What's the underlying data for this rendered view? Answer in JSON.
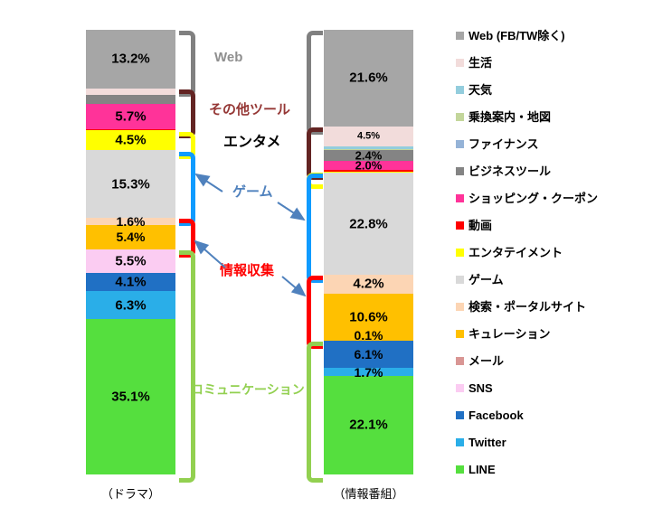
{
  "chart_data": {
    "type": "bar",
    "subtype": "stacked-percentage-columns",
    "title": "",
    "unit": "%",
    "legend_position": "right",
    "legend": [
      {
        "label": "Web (FB/TW除く)",
        "color": "#a6a6a6"
      },
      {
        "label": "生活",
        "color": "#f2dcdb"
      },
      {
        "label": "天気",
        "color": "#93cddd"
      },
      {
        "label": "乗換案内・地図",
        "color": "#c3d69b"
      },
      {
        "label": "ファイナンス",
        "color": "#95b3d7"
      },
      {
        "label": "ビジネスツール",
        "color": "#848484"
      },
      {
        "label": "ショッピング・クーポン",
        "color": "#ff3399"
      },
      {
        "label": "動画",
        "color": "#fe0000"
      },
      {
        "label": "エンタテイメント",
        "color": "#ffff00"
      },
      {
        "label": "ゲーム",
        "color": "#d9d9d9"
      },
      {
        "label": "検索・ポータルサイト",
        "color": "#fcd5b4"
      },
      {
        "label": "キュレーション",
        "color": "#ffc000"
      },
      {
        "label": "メール",
        "color": "#d99694"
      },
      {
        "label": "SNS",
        "color": "#fbccf2"
      },
      {
        "label": "Facebook",
        "color": "#2070c4"
      },
      {
        "label": "Twitter",
        "color": "#2aaee8"
      },
      {
        "label": "LINE",
        "color": "#55df3e"
      }
    ],
    "bars": [
      {
        "label": "（ドラマ）",
        "segments": [
          {
            "name": "Web (FB/TW除く)",
            "value": 13.2,
            "label": "13.2%",
            "label_size": 15
          },
          {
            "name": "生活",
            "value": 1.5
          },
          {
            "name": "ビジネスツール",
            "value": 2.1
          },
          {
            "name": "ショッピング・クーポン",
            "value": 5.7,
            "label": "5.7%",
            "label_size": 15
          },
          {
            "name": "動画",
            "value": 0.3
          },
          {
            "name": "エンタテイメント",
            "value": 4.5,
            "label": "4.5%",
            "label_size": 15
          },
          {
            "name": "ゲーム",
            "value": 15.3,
            "label": "15.3%",
            "label_size": 15
          },
          {
            "name": "検索・ポータルサイト",
            "value": 1.6,
            "label": "1.6%",
            "label_size": 14
          },
          {
            "name": "キュレーション",
            "value": 5.4,
            "label": "5.4%",
            "label_size": 14
          },
          {
            "name": "SNS",
            "value": 5.5,
            "label": "5.5%",
            "label_size": 15
          },
          {
            "name": "Facebook",
            "value": 4.1,
            "label": "4.1%",
            "label_size": 15
          },
          {
            "name": "Twitter",
            "value": 6.3,
            "label": "6.3%",
            "label_size": 15
          },
          {
            "name": "LINE",
            "value": 35.1,
            "label": "35.1%",
            "label_size": 15
          }
        ]
      },
      {
        "label": "（情報番組）",
        "segments": [
          {
            "name": "Web (FB/TW除く)",
            "value": 21.6,
            "label": "21.6%",
            "label_size": 15
          },
          {
            "name": "生活",
            "value": 4.5,
            "label": "4.5%",
            "label_size": 11
          },
          {
            "name": "天気",
            "value": 0.6
          },
          {
            "name": "乗換案内・地図",
            "value": 0.3
          },
          {
            "name": "ビジネスツール",
            "value": 2.4,
            "label": "2.4%",
            "label_size": 13
          },
          {
            "name": "ショッピング・クーポン",
            "value": 2.0,
            "label": "2.0%",
            "label_size": 13
          },
          {
            "name": "動画",
            "value": 0.4
          },
          {
            "name": "エンタテイメント",
            "value": 0.3
          },
          {
            "name": "ゲーム",
            "value": 22.8,
            "label": "22.8%",
            "label_size": 15
          },
          {
            "name": "検索・ポータルサイト",
            "value": 4.2,
            "label": "4.2%",
            "label_size": 15
          },
          {
            "name": "キュレーション",
            "value": 10.6,
            "label": "10.6%",
            "label_size": 15
          },
          {
            "name": "メール",
            "value": 0.1,
            "label": "0.1%",
            "label_size": 14,
            "label_dy": -6
          },
          {
            "name": "Facebook",
            "value": 6.1,
            "label": "6.1%",
            "label_size": 14
          },
          {
            "name": "Twitter",
            "value": 1.7,
            "label": "1.7%",
            "label_size": 14
          },
          {
            "name": "LINE",
            "value": 22.1,
            "label": "22.1%",
            "label_size": 15
          }
        ]
      }
    ],
    "groups": [
      {
        "id": "web",
        "label": "Web",
        "bracket_color": "#808080",
        "text_color": "#8f8f8f",
        "categories": [
          "Web (FB/TW除く)"
        ]
      },
      {
        "id": "tools",
        "label": "その他ツール",
        "bracket_color": "#632423",
        "text_color": "#953735",
        "categories": [
          "生活",
          "天気",
          "乗換案内・地図",
          "ファイナンス",
          "ビジネスツール",
          "ショッピング・クーポン",
          "動画"
        ]
      },
      {
        "id": "entame",
        "label": "エンタメ",
        "bracket_color": "#ffff00",
        "text_color": "#000000",
        "categories": [
          "エンタテイメント"
        ]
      },
      {
        "id": "game",
        "label": "ゲーム",
        "bracket_color": "#0f9bff",
        "text_color": "#4f81bd",
        "categories": [
          "ゲーム"
        ]
      },
      {
        "id": "info",
        "label": "情報収集",
        "bracket_color": "#ff0000",
        "text_color": "#ff0000",
        "categories": [
          "検索・ポータルサイト",
          "キュレーション"
        ]
      },
      {
        "id": "comm",
        "label": "コミュニケーション",
        "bracket_color": "#92d050",
        "text_color": "#92d050",
        "categories": [
          "メール",
          "SNS",
          "Facebook",
          "Twitter",
          "LINE"
        ]
      }
    ],
    "arrow_color": "#4f81bd"
  }
}
